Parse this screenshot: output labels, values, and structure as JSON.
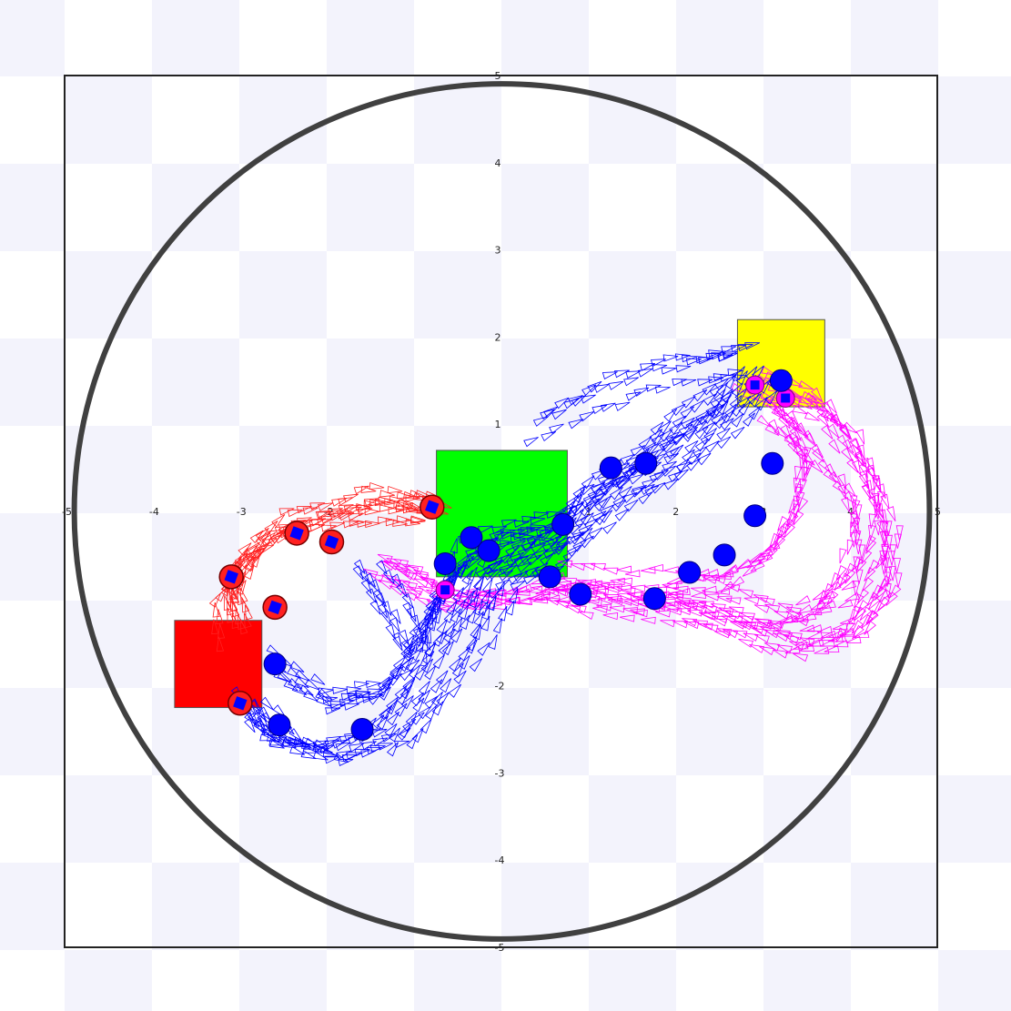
{
  "world": {
    "xlim": [
      -5,
      5
    ],
    "ylim": [
      -5,
      5
    ],
    "x_ticks": [
      "-5",
      "-4",
      "-3",
      "-2",
      "1",
      "2",
      "3",
      "4",
      "5"
    ],
    "x_tick_values": [
      -5,
      -4,
      -3,
      -2,
      1,
      2,
      3,
      4,
      5
    ],
    "y_ticks": [
      "5",
      "4",
      "3",
      "2",
      "1",
      "-2",
      "-3",
      "-4",
      "-5"
    ],
    "y_tick_values": [
      5,
      4,
      3,
      2,
      1,
      -2,
      -3,
      -4,
      -5
    ],
    "arena_radius": 4.9
  },
  "colors": {
    "checker_a": "#f3f3fc",
    "checker_b": "#ffffff",
    "boundary": "#404040",
    "frame": "#222222",
    "red": "#ff0000",
    "green": "#00ff00",
    "yellow": "#ffff00",
    "blue": "#0000ff",
    "magenta": "#ff00ff",
    "red_robot": "#ff2020"
  },
  "zones": [
    {
      "name": "red-zone",
      "color": "#ff0000",
      "x": [
        -3.75,
        -2.75
      ],
      "y": [
        -2.25,
        -1.25
      ]
    },
    {
      "name": "green-zone",
      "color": "#00ff00",
      "x": [
        -0.75,
        0.75
      ],
      "y": [
        -0.75,
        0.7
      ]
    },
    {
      "name": "yellow-zone",
      "color": "#ffff00",
      "x": [
        2.7,
        3.7
      ],
      "y": [
        1.2,
        2.2
      ]
    }
  ],
  "robots": {
    "red": [
      [
        -3.1,
        -0.75
      ],
      [
        -2.6,
        -1.1
      ],
      [
        -2.35,
        -0.25
      ],
      [
        -1.95,
        -0.35
      ],
      [
        -3.0,
        -2.2
      ],
      [
        -0.8,
        0.05
      ]
    ],
    "blue": [
      [
        -2.6,
        -1.75
      ],
      [
        -0.65,
        -0.6
      ],
      [
        -0.35,
        -0.3
      ],
      [
        -0.15,
        -0.45
      ],
      [
        0.55,
        -0.75
      ],
      [
        0.7,
        -0.15
      ],
      [
        0.9,
        -0.95
      ],
      [
        1.25,
        0.5
      ],
      [
        1.65,
        0.55
      ],
      [
        1.75,
        -1.0
      ],
      [
        2.15,
        -0.7
      ],
      [
        2.55,
        -0.5
      ],
      [
        2.9,
        -0.05
      ],
      [
        3.1,
        0.55
      ],
      [
        -1.6,
        -2.5
      ],
      [
        -2.55,
        -2.45
      ],
      [
        3.2,
        1.5
      ]
    ],
    "magenta": [
      [
        -0.65,
        -0.9
      ],
      [
        2.9,
        1.45
      ],
      [
        3.25,
        1.3
      ]
    ]
  },
  "paths": {
    "red": [
      [
        -3.0,
        -1.3
      ],
      [
        -3.1,
        -0.9
      ],
      [
        -2.9,
        -0.5
      ],
      [
        -2.5,
        -0.2
      ],
      [
        -2.0,
        -0.05
      ],
      [
        -1.5,
        0.1
      ],
      [
        -1.0,
        0.1
      ],
      [
        -0.7,
        0.0
      ]
    ],
    "blue": [
      [
        -2.9,
        -2.1
      ],
      [
        -2.6,
        -2.55
      ],
      [
        -2.0,
        -2.7
      ],
      [
        -1.3,
        -2.45
      ],
      [
        -0.9,
        -2.0
      ],
      [
        -0.4,
        -1.3
      ],
      [
        -0.1,
        -0.7
      ],
      [
        0.4,
        -0.4
      ],
      [
        0.9,
        -0.1
      ],
      [
        1.4,
        0.35
      ],
      [
        2.0,
        0.7
      ],
      [
        2.6,
        1.2
      ],
      [
        3.0,
        1.7
      ]
    ],
    "blue_b": [
      [
        -2.4,
        -1.8
      ],
      [
        -1.8,
        -2.2
      ],
      [
        -1.2,
        -2.1
      ],
      [
        -0.7,
        -1.6
      ],
      [
        -0.5,
        -1.0
      ],
      [
        -0.2,
        -0.5
      ],
      [
        0.3,
        -0.3
      ],
      [
        0.8,
        -0.2
      ],
      [
        1.2,
        0.2
      ],
      [
        1.8,
        0.6
      ],
      [
        2.3,
        1.0
      ],
      [
        2.8,
        1.4
      ]
    ],
    "blue_loop": [
      [
        -1.5,
        -0.65
      ],
      [
        -1.2,
        -1.1
      ],
      [
        -1.0,
        -1.6
      ],
      [
        -0.6,
        -1.0
      ],
      [
        -0.35,
        -0.55
      ]
    ],
    "blue_upper": [
      [
        0.55,
        1.0
      ],
      [
        1.2,
        1.3
      ],
      [
        1.9,
        1.6
      ],
      [
        2.5,
        1.7
      ],
      [
        2.9,
        1.75
      ]
    ],
    "magenta": [
      [
        3.0,
        1.45
      ],
      [
        3.6,
        1.2
      ],
      [
        4.1,
        0.5
      ],
      [
        4.4,
        -0.2
      ],
      [
        4.4,
        -0.9
      ],
      [
        4.0,
        -1.4
      ],
      [
        3.4,
        -1.55
      ],
      [
        2.7,
        -1.3
      ],
      [
        2.0,
        -1.1
      ],
      [
        1.3,
        -1.0
      ],
      [
        0.7,
        -0.9
      ],
      [
        0.0,
        -1.0
      ],
      [
        -0.5,
        -1.0
      ],
      [
        -1.0,
        -0.8
      ],
      [
        -1.4,
        -0.6
      ]
    ],
    "magenta_b": [
      [
        3.2,
        1.3
      ],
      [
        3.8,
        0.9
      ],
      [
        4.2,
        0.2
      ],
      [
        4.2,
        -0.5
      ],
      [
        3.9,
        -1.0
      ],
      [
        3.3,
        -1.2
      ],
      [
        2.6,
        -1.0
      ],
      [
        1.9,
        -0.85
      ],
      [
        1.2,
        -0.8
      ],
      [
        0.6,
        -0.75
      ]
    ],
    "magenta_c": [
      [
        3.1,
        1.1
      ],
      [
        3.4,
        0.6
      ],
      [
        3.3,
        0.0
      ],
      [
        3.0,
        -0.5
      ],
      [
        2.5,
        -0.8
      ],
      [
        1.8,
        -0.9
      ]
    ]
  }
}
